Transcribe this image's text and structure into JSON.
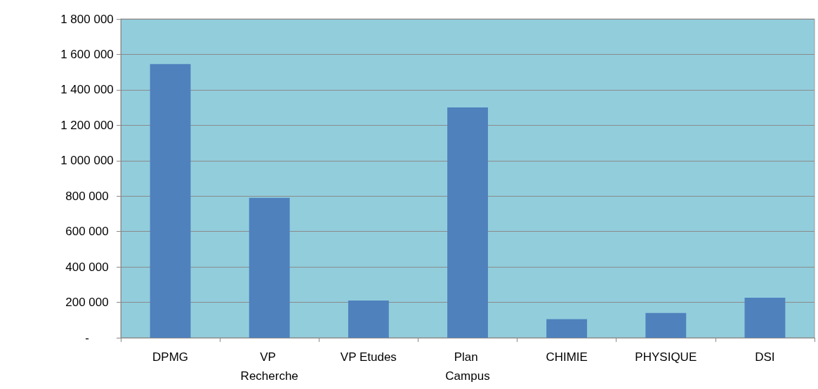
{
  "chart_data": {
    "type": "bar",
    "categories": [
      "DPMG",
      "VP Recherche",
      "VP Etudes",
      "Plan Campus",
      "CHIMIE",
      "PHYSIQUE",
      "DSI"
    ],
    "values": [
      1545000,
      790000,
      210000,
      1300000,
      105000,
      140000,
      226000
    ],
    "color": "#4f81bd",
    "ylim": [
      0,
      1800000
    ],
    "yticks": [
      {
        "value": 0,
        "label": "-"
      },
      {
        "value": 200000,
        "label": "200 000"
      },
      {
        "value": 400000,
        "label": "400 000"
      },
      {
        "value": 600000,
        "label": "600 000"
      },
      {
        "value": 800000,
        "label": "800 000"
      },
      {
        "value": 1000000,
        "label": "1 000 000"
      },
      {
        "value": 1200000,
        "label": "1 200 000"
      },
      {
        "value": 1400000,
        "label": "1 400 000"
      },
      {
        "value": 1600000,
        "label": "1 600 000"
      },
      {
        "value": 1800000,
        "label": "1 800 000"
      }
    ],
    "grid": true
  }
}
